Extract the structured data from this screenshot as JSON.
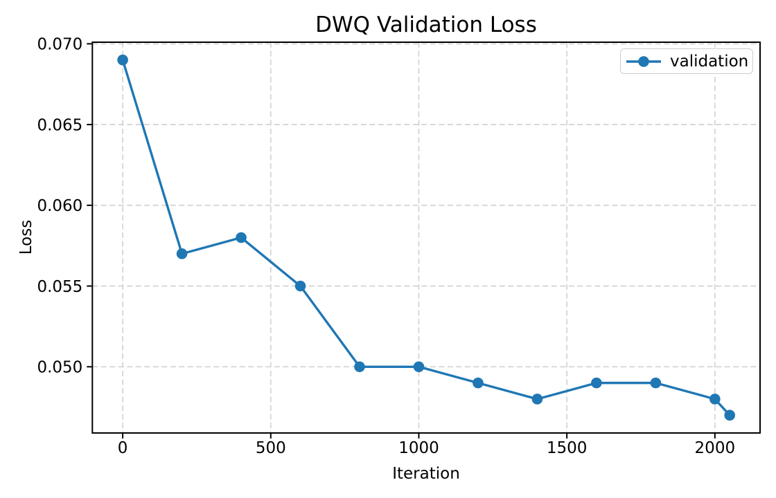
{
  "figure": {
    "background": "#ffffff",
    "text_color": "#000000",
    "grid_color": "#d5d5d5",
    "spine_color": "#000000",
    "legend_border_color": "#cccccc"
  },
  "chart_data": {
    "type": "line",
    "title": "DWQ Validation Loss",
    "xlabel": "Iteration",
    "ylabel": "Loss",
    "series": [
      {
        "name": "validation",
        "color": "#1f77b4",
        "marker": "circle",
        "x": [
          0,
          200,
          400,
          600,
          800,
          1000,
          1200,
          1400,
          1600,
          1800,
          2000,
          2050
        ],
        "y": [
          0.069,
          0.057,
          0.058,
          0.055,
          0.05,
          0.05,
          0.049,
          0.048,
          0.049,
          0.049,
          0.048,
          0.047
        ]
      }
    ],
    "xlim": [
      -102.5,
      2152.5
    ],
    "ylim": [
      0.0459,
      0.0701
    ],
    "xticks": [
      0,
      500,
      1000,
      1500,
      2000
    ],
    "xtick_labels": [
      "0",
      "500",
      "1000",
      "1500",
      "2000"
    ],
    "yticks": [
      0.05,
      0.055,
      0.06,
      0.065,
      0.07
    ],
    "ytick_labels": [
      "0.050",
      "0.055",
      "0.060",
      "0.065",
      "0.070"
    ],
    "grid": true,
    "grid_style": "dashed",
    "legend": {
      "position": "upper right",
      "entries": [
        "validation"
      ]
    }
  }
}
